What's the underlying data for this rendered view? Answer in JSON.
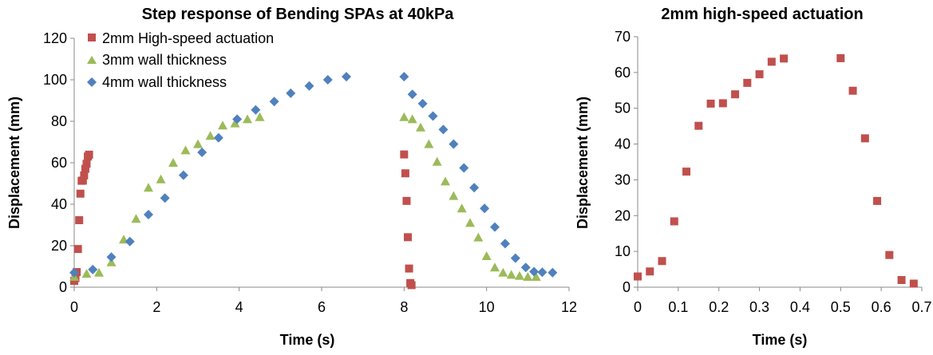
{
  "chart_data": [
    {
      "type": "scatter",
      "title": "Step response of Bending SPAs at 40kPa",
      "xlabel": "Time (s)",
      "ylabel": "Displacement (mm)",
      "xlim": [
        0,
        12
      ],
      "ylim": [
        0,
        120
      ],
      "xticks": [
        0,
        2,
        4,
        6,
        8,
        10,
        12
      ],
      "yticks": [
        0,
        20,
        40,
        60,
        80,
        100,
        120
      ],
      "grid": false,
      "legend_position": "top-left",
      "series": [
        {
          "name": "2mm High-speed actuation",
          "marker": "square",
          "color": "#C0504D",
          "points": [
            [
              0.0,
              3
            ],
            [
              0.03,
              4.4
            ],
            [
              0.06,
              7.3
            ],
            [
              0.09,
              18.4
            ],
            [
              0.12,
              32.3
            ],
            [
              0.15,
              45.1
            ],
            [
              0.18,
              51.3
            ],
            [
              0.21,
              51.4
            ],
            [
              0.24,
              53.9
            ],
            [
              0.27,
              57.1
            ],
            [
              0.3,
              59.5
            ],
            [
              0.33,
              63.0
            ],
            [
              0.36,
              63.9
            ],
            [
              8.0,
              64.0
            ],
            [
              8.03,
              54.9
            ],
            [
              8.06,
              41.6
            ],
            [
              8.09,
              24.1
            ],
            [
              8.12,
              9.0
            ],
            [
              8.15,
              2.0
            ],
            [
              8.18,
              1.0
            ]
          ]
        },
        {
          "name": "3mm wall thickness",
          "marker": "triangle",
          "color": "#9BBB59",
          "points": [
            [
              0.0,
              5
            ],
            [
              0.3,
              6.5
            ],
            [
              0.6,
              7
            ],
            [
              0.9,
              12
            ],
            [
              1.2,
              23
            ],
            [
              1.5,
              33
            ],
            [
              1.8,
              48
            ],
            [
              2.1,
              52
            ],
            [
              2.4,
              60
            ],
            [
              2.7,
              66
            ],
            [
              3.0,
              69
            ],
            [
              3.3,
              73
            ],
            [
              3.6,
              78
            ],
            [
              3.9,
              79
            ],
            [
              4.2,
              81
            ],
            [
              4.5,
              82
            ],
            [
              8.0,
              82
            ],
            [
              8.2,
              81
            ],
            [
              8.4,
              77
            ],
            [
              8.6,
              69
            ],
            [
              8.8,
              60.5
            ],
            [
              9.0,
              51
            ],
            [
              9.2,
              44
            ],
            [
              9.4,
              38
            ],
            [
              9.6,
              31
            ],
            [
              9.8,
              24
            ],
            [
              10.0,
              15
            ],
            [
              10.2,
              9.5
            ],
            [
              10.4,
              7
            ],
            [
              10.6,
              6
            ],
            [
              10.8,
              5.5
            ],
            [
              11.0,
              5
            ],
            [
              11.2,
              5
            ]
          ]
        },
        {
          "name": "4mm wall thickness",
          "marker": "diamond",
          "color": "#4F81BD",
          "points": [
            [
              0.0,
              7
            ],
            [
              0.45,
              8.5
            ],
            [
              0.9,
              14.5
            ],
            [
              1.35,
              22
            ],
            [
              1.8,
              35
            ],
            [
              2.2,
              43
            ],
            [
              2.65,
              54
            ],
            [
              3.1,
              65
            ],
            [
              3.5,
              72
            ],
            [
              3.95,
              81
            ],
            [
              4.4,
              85.5
            ],
            [
              4.85,
              89.5
            ],
            [
              5.25,
              93.5
            ],
            [
              5.7,
              97
            ],
            [
              6.15,
              100
            ],
            [
              6.6,
              101.5
            ],
            [
              8.0,
              101.5
            ],
            [
              8.2,
              93
            ],
            [
              8.45,
              88.5
            ],
            [
              8.7,
              82.5
            ],
            [
              8.95,
              76
            ],
            [
              9.2,
              69
            ],
            [
              9.45,
              57.5
            ],
            [
              9.7,
              48
            ],
            [
              9.95,
              38
            ],
            [
              10.2,
              29
            ],
            [
              10.45,
              21
            ],
            [
              10.7,
              14
            ],
            [
              10.95,
              9.5
            ],
            [
              11.15,
              7.5
            ],
            [
              11.35,
              7.2
            ],
            [
              11.6,
              7
            ]
          ]
        }
      ]
    },
    {
      "type": "scatter",
      "title": "2mm high-speed actuation",
      "xlabel": "Time (s)",
      "ylabel": "Displacement (mm)",
      "xlim": [
        0,
        0.7
      ],
      "ylim": [
        0,
        70
      ],
      "xticks": [
        "0",
        "0.1",
        "0.2",
        "0.3",
        "0.4",
        "0.5",
        "0.6",
        "0.7"
      ],
      "yticks": [
        0,
        10,
        20,
        30,
        40,
        50,
        60,
        70
      ],
      "grid": false,
      "legend_position": "none",
      "series": [
        {
          "marker": "square",
          "color": "#C0504D",
          "points": [
            [
              0.0,
              3
            ],
            [
              0.03,
              4.4
            ],
            [
              0.06,
              7.3
            ],
            [
              0.09,
              18.4
            ],
            [
              0.12,
              32.3
            ],
            [
              0.15,
              45.1
            ],
            [
              0.18,
              51.3
            ],
            [
              0.21,
              51.4
            ],
            [
              0.24,
              53.9
            ],
            [
              0.27,
              57.1
            ],
            [
              0.3,
              59.5
            ],
            [
              0.33,
              63.0
            ],
            [
              0.36,
              63.9
            ],
            [
              0.5,
              64.0
            ],
            [
              0.53,
              54.9
            ],
            [
              0.56,
              41.6
            ],
            [
              0.59,
              24.1
            ],
            [
              0.62,
              9.0
            ],
            [
              0.65,
              2.0
            ],
            [
              0.68,
              1.0
            ]
          ]
        }
      ]
    }
  ]
}
